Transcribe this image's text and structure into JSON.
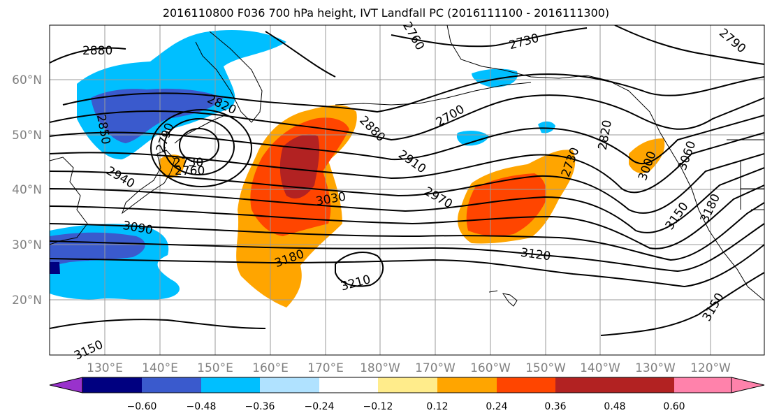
{
  "title": "2016110800 F036 700 hPa height, IVT Landfall PC (2016111100 - 2016111300)",
  "axes": {
    "lon_ticks": [
      "130°E",
      "140°E",
      "150°E",
      "160°E",
      "170°E",
      "180°W",
      "170°W",
      "160°W",
      "150°W",
      "140°W",
      "130°W",
      "120°W"
    ],
    "lat_ticks": [
      "60°N",
      "50°N",
      "40°N",
      "30°N",
      "20°N"
    ]
  },
  "colorbar": {
    "colors": [
      "#9932CC",
      "#000080",
      "#3A5ACD",
      "#00BFFF",
      "#B0E2FF",
      "#FFFFFF",
      "#FFEC8B",
      "#FFA500",
      "#FF4500",
      "#B22222",
      "#FF82AB"
    ],
    "tick_labels": [
      "−0.60",
      "−0.48",
      "−0.36",
      "−0.24",
      "−0.12",
      "0.12",
      "0.24",
      "0.36",
      "0.48",
      "0.60"
    ]
  },
  "contour_labels": [
    "2880",
    "2850",
    "2820",
    "2790",
    "2730",
    "2760",
    "2940",
    "3090",
    "2880",
    "2910",
    "2970",
    "3030",
    "3180",
    "3210",
    "3150",
    "2700",
    "2730",
    "2760",
    "2790",
    "2820",
    "2730",
    "3000",
    "3060",
    "3150",
    "3180",
    "3120",
    "3150"
  ],
  "colors": {
    "contour": "#000000",
    "coast": "#000000",
    "grid": "#9a9a9a"
  }
}
